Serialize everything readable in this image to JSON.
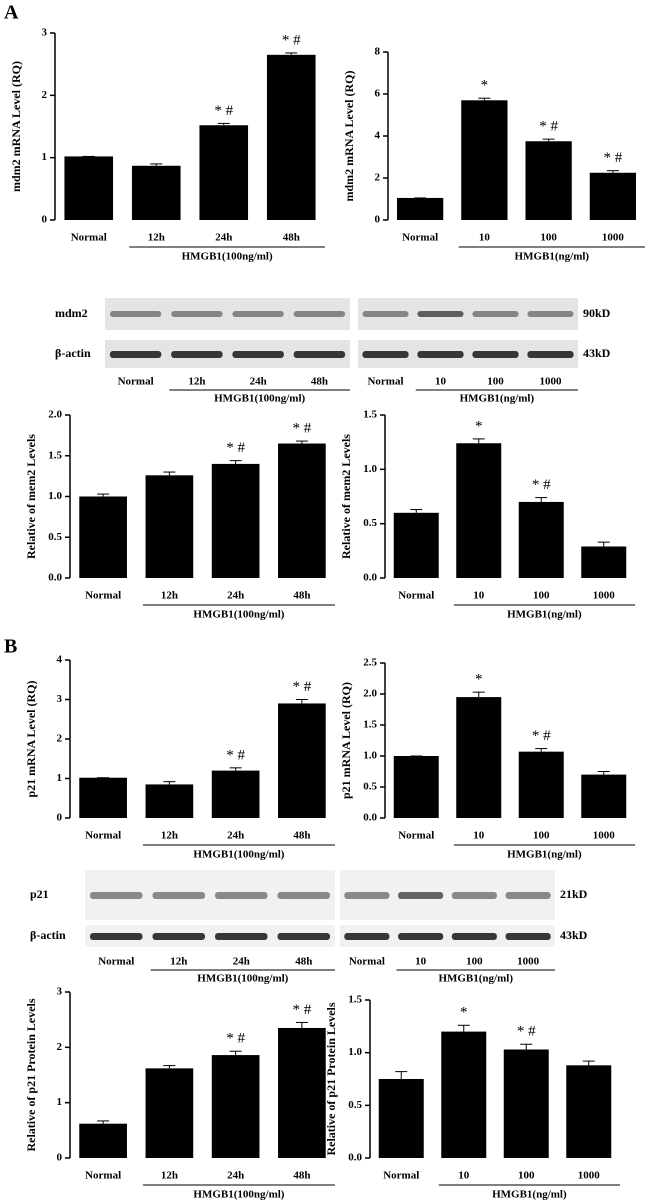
{
  "panel_labels": [
    "A",
    "B"
  ],
  "chart_data": [
    {
      "type": "bar",
      "ylabel": "mdm2 mRNA Level (RQ)",
      "categories": [
        "Normal",
        "12h",
        "24h",
        "48h"
      ],
      "group_label": "HMGB1(100ng/ml)",
      "values": [
        1.02,
        0.87,
        1.52,
        2.65
      ],
      "errors": [
        0,
        0.03,
        0.03,
        0.03
      ],
      "annotations": [
        null,
        null,
        "* #",
        "* #"
      ],
      "ylim": [
        0,
        3
      ],
      "yticks": [
        0,
        1,
        2,
        3
      ],
      "color": "#000000"
    },
    {
      "type": "bar",
      "ylabel": "mdm2 mRNA Level (RQ)",
      "categories": [
        "Normal",
        "10",
        "100",
        "1000"
      ],
      "group_label": "HMGB1(ng/ml)",
      "values": [
        1.05,
        5.7,
        3.75,
        2.25
      ],
      "errors": [
        0,
        0.1,
        0.1,
        0.1
      ],
      "annotations": [
        null,
        "*",
        "* #",
        "* #"
      ],
      "ylim": [
        0,
        8
      ],
      "yticks": [
        0,
        2,
        4,
        6,
        8
      ],
      "color": "#000000"
    },
    {
      "type": "bar",
      "ylabel": "Relative of mem2 Levels",
      "categories": [
        "Normal",
        "12h",
        "24h",
        "48h"
      ],
      "group_label": "HMGB1(100ng/ml)",
      "values": [
        1.0,
        1.26,
        1.4,
        1.65
      ],
      "errors": [
        0.03,
        0.04,
        0.04,
        0.03
      ],
      "annotations": [
        null,
        null,
        "* #",
        "* #"
      ],
      "ylim": [
        0,
        2
      ],
      "yticks": [
        {
          "value": 0,
          "label": "0.0"
        },
        0.5,
        {
          "value": 1,
          "label": "1.0"
        },
        1.5,
        {
          "value": 2,
          "label": "2.0"
        }
      ],
      "color": "#000000"
    },
    {
      "type": "bar",
      "ylabel": "Relative of mem2 Levels",
      "categories": [
        "Normal",
        "10",
        "100",
        "1000"
      ],
      "group_label": "HMGB1(ng/ml)",
      "values": [
        0.6,
        1.24,
        0.7,
        0.29
      ],
      "errors": [
        0.03,
        0.04,
        0.04,
        0.04
      ],
      "annotations": [
        null,
        "*",
        "* #",
        null
      ],
      "ylim": [
        0,
        1.5
      ],
      "yticks": [
        {
          "value": 0,
          "label": "0.0"
        },
        0.5,
        {
          "value": 1,
          "label": "1.0"
        },
        1.5
      ],
      "color": "#000000"
    },
    {
      "type": "bar",
      "ylabel": "p21 mRNA Level (RQ)",
      "categories": [
        "Normal",
        "12h",
        "24h",
        "48h"
      ],
      "group_label": "HMGB1(100ng/ml)",
      "values": [
        1.02,
        0.85,
        1.2,
        2.9
      ],
      "errors": [
        0,
        0.07,
        0.07,
        0.1
      ],
      "annotations": [
        null,
        null,
        "* #",
        "* #"
      ],
      "ylim": [
        0,
        4
      ],
      "yticks": [
        0,
        1,
        2,
        3,
        4
      ],
      "color": "#000000"
    },
    {
      "type": "bar",
      "ylabel": "p21 mRNA Level (RQ)",
      "categories": [
        "Normal",
        "10",
        "100",
        "1000"
      ],
      "group_label": "HMGB1(ng/ml)",
      "values": [
        1.0,
        1.95,
        1.07,
        0.7
      ],
      "errors": [
        0,
        0.08,
        0.05,
        0.05
      ],
      "annotations": [
        null,
        "*",
        "* #",
        null
      ],
      "ylim": [
        0,
        2.5
      ],
      "yticks": [
        {
          "value": 0,
          "label": "0.0"
        },
        0.5,
        {
          "value": 1,
          "label": "1.0"
        },
        1.5,
        {
          "value": 2,
          "label": "2.0"
        },
        2.5
      ],
      "color": "#000000"
    },
    {
      "type": "bar",
      "ylabel": "Relative of p21 Protein Levels",
      "categories": [
        "Normal",
        "12h",
        "24h",
        "48h"
      ],
      "group_label": "HMGB1(100ng/ml)",
      "values": [
        0.62,
        1.62,
        1.86,
        2.35
      ],
      "errors": [
        0.05,
        0.05,
        0.07,
        0.1
      ],
      "annotations": [
        null,
        null,
        "* #",
        "* #"
      ],
      "ylim": [
        0,
        3
      ],
      "yticks": [
        0,
        1,
        2,
        3
      ],
      "color": "#000000"
    },
    {
      "type": "bar",
      "ylabel": "Relative of p21 Protein Levels",
      "categories": [
        "Normal",
        "10",
        "100",
        "1000"
      ],
      "group_label": "HMGB1(ng/ml)",
      "values": [
        0.75,
        1.2,
        1.03,
        0.88
      ],
      "errors": [
        0.07,
        0.06,
        0.05,
        0.04
      ],
      "annotations": [
        null,
        "*",
        "* #",
        null
      ],
      "ylim": [
        0,
        1.5
      ],
      "yticks": [
        {
          "value": 0,
          "label": "0.0"
        },
        0.5,
        {
          "value": 1,
          "label": "1.0"
        },
        1.5
      ],
      "color": "#000000"
    }
  ],
  "blots": [
    {
      "rows": [
        "mdm2",
        "β-actin"
      ],
      "sizes": [
        "90kD",
        "43kD"
      ],
      "lanes": [
        [
          "Normal",
          "12h",
          "24h",
          "48h"
        ],
        [
          "Normal",
          "10",
          "100",
          "1000"
        ]
      ],
      "groups": [
        "HMGB1(100ng/ml)",
        "HMGB1(ng/ml)"
      ]
    },
    {
      "rows": [
        "p21",
        "β-actin"
      ],
      "sizes": [
        "21kD",
        "43kD"
      ],
      "lanes": [
        [
          "Normal",
          "12h",
          "24h",
          "48h"
        ],
        [
          "Normal",
          "10",
          "100",
          "1000"
        ]
      ],
      "groups": [
        "HMGB1(100ng/ml)",
        "HMGB1(ng/ml)"
      ]
    }
  ]
}
